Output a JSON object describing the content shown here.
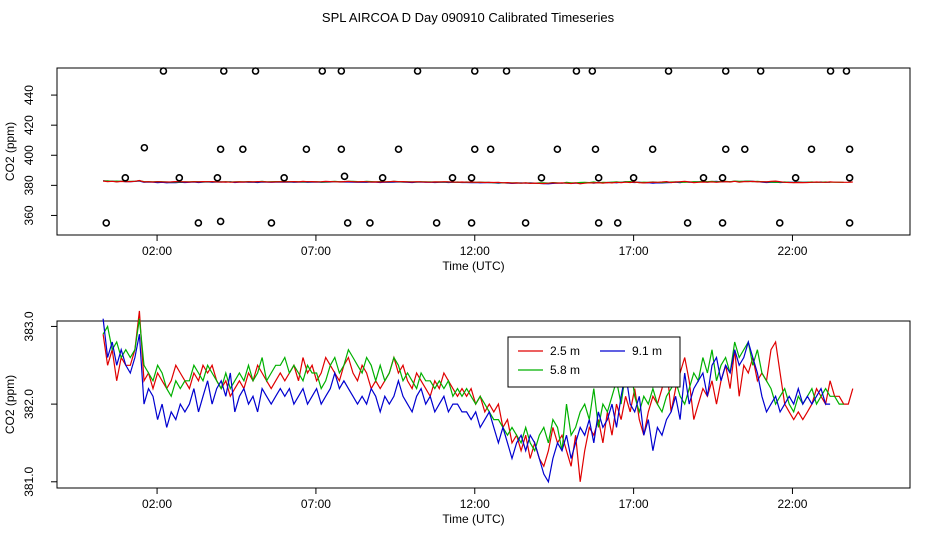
{
  "title": "SPL AIRCOA D  Day 090910  Calibrated Timeseries",
  "chart_data": [
    {
      "type": "scatter",
      "xlabel": "Time (UTC)",
      "ylabel": "CO2 (ppm)",
      "xlim": [
        -1.15,
        25.7
      ],
      "ylim": [
        347,
        458
      ],
      "xticks": [
        2,
        7,
        12,
        17,
        22
      ],
      "xtick_labels": [
        "02:00",
        "07:00",
        "12:00",
        "17:00",
        "22:00"
      ],
      "yticks": [
        360,
        380,
        400,
        420,
        440
      ],
      "ytick_labels": [
        "360",
        "380",
        "400",
        "420",
        "440"
      ],
      "reference_points": {
        "x": [
          0.4,
          1.0,
          1.6,
          2.2,
          2.7,
          3.3,
          3.9,
          4.0,
          4.0,
          4.1,
          4.7,
          5.1,
          5.6,
          6.0,
          6.7,
          7.2,
          7.8,
          7.8,
          7.9,
          8.0,
          8.7,
          9.1,
          9.6,
          10.2,
          10.8,
          11.3,
          11.9,
          11.9,
          12.0,
          12.0,
          12.5,
          13.0,
          13.6,
          14.1,
          14.6,
          15.2,
          15.7,
          15.8,
          15.9,
          15.9,
          16.5,
          17.0,
          17.6,
          18.1,
          18.7,
          19.2,
          19.8,
          19.8,
          19.9,
          19.9,
          20.5,
          21.0,
          21.6,
          22.1,
          22.6,
          23.2,
          23.7,
          23.8,
          23.8,
          23.8
        ],
        "y": [
          355,
          385,
          405,
          456,
          385,
          355,
          385,
          356,
          404,
          456,
          404,
          456,
          355,
          385,
          404,
          456,
          456,
          404,
          386,
          355,
          355,
          385,
          404,
          456,
          355,
          385,
          355,
          385,
          404,
          456,
          404,
          456,
          355,
          385,
          404,
          456,
          456,
          404,
          385,
          355,
          355,
          385,
          404,
          456,
          355,
          385,
          355,
          385,
          404,
          456,
          404,
          456,
          355,
          385,
          404,
          456,
          456,
          404,
          385,
          355
        ]
      },
      "series": [
        {
          "name": "2.5 m",
          "color": "#e00000",
          "y": [
            382.9,
            382.5,
            382.7,
            382.3,
            382.6,
            382.5,
            382.5,
            382.7,
            383.2,
            382.3,
            382.4,
            382.2,
            382.4,
            382.3,
            382.2,
            382.3,
            382.5,
            382.4,
            382.3,
            382.2,
            382.4,
            382.3,
            382.5,
            382.4,
            382.5,
            382.3,
            382.2,
            382.3,
            382.1,
            382.2,
            382.3,
            382.2,
            382.4,
            382.3,
            382.5,
            382.4,
            382.3,
            382.2,
            382.3,
            382.4,
            382.3,
            382.4,
            382.5,
            382.3,
            382.6,
            382.4,
            382.5,
            382.3,
            382.4,
            382.6,
            382.5,
            382.4,
            382.3,
            382.5,
            382.6,
            382.4,
            382.3,
            382.5,
            382.4,
            382.2,
            382.3,
            382.2,
            382.3,
            382.4,
            382.6,
            382.4,
            382.5,
            382.3,
            382.2,
            382.4,
            382.3,
            382.2,
            382.1,
            382.3,
            382.2,
            382.4,
            382.3,
            382.2,
            382.1,
            382.2,
            382.1,
            382.2,
            382.0,
            382.1,
            381.9,
            382.0,
            381.9,
            382.0,
            381.7,
            381.8,
            381.5,
            381.6,
            381.4,
            381.6,
            381.3,
            381.5,
            381.3,
            381.2,
            381.4,
            381.7,
            381.5,
            381.6,
            381.4,
            381.2,
            381.6,
            381.0,
            381.4,
            381.7,
            381.6,
            381.8,
            381.5,
            381.9,
            381.6,
            382.0,
            381.8,
            382.1,
            381.9,
            382.2,
            381.8,
            381.6,
            381.9,
            382.1,
            382.0,
            382.2,
            382.5,
            381.9,
            382.2,
            382.4,
            382.6,
            382.3,
            381.8,
            382.0,
            382.2,
            382.1,
            382.3,
            382.0,
            382.3,
            382.5,
            382.2,
            382.7,
            382.1,
            382.5,
            382.4,
            382.6,
            382.3,
            382.4,
            382.3,
            382.7,
            382.8,
            382.4,
            382.0,
            381.9,
            381.8,
            381.9,
            381.8,
            381.9,
            382.0,
            382.2,
            382.1,
            382.0,
            382.3,
            382.1,
            382.1,
            382.0,
            382.0,
            382.2
          ]
        },
        {
          "name": "5.8 m",
          "color": "#00b000",
          "y": [
            382.9,
            383.0,
            382.7,
            382.8,
            382.6,
            382.7,
            382.6,
            382.7,
            383.1,
            382.5,
            382.4,
            382.3,
            382.5,
            382.4,
            382.2,
            382.1,
            382.3,
            382.2,
            382.3,
            382.3,
            382.5,
            382.4,
            382.3,
            382.5,
            382.4,
            382.3,
            382.2,
            382.4,
            382.2,
            382.3,
            382.4,
            382.3,
            382.5,
            382.3,
            382.4,
            382.6,
            382.3,
            382.4,
            382.5,
            382.5,
            382.6,
            382.4,
            382.5,
            382.4,
            382.3,
            382.5,
            382.4,
            382.4,
            382.2,
            382.3,
            382.5,
            382.6,
            382.4,
            382.5,
            382.7,
            382.6,
            382.5,
            382.4,
            382.6,
            382.5,
            382.3,
            382.5,
            382.3,
            382.4,
            382.6,
            382.5,
            382.3,
            382.4,
            382.3,
            382.2,
            382.4,
            382.3,
            382.3,
            382.2,
            382.3,
            382.2,
            382.3,
            382.1,
            382.2,
            382.1,
            382.2,
            382.1,
            382.0,
            382.1,
            382.0,
            381.9,
            381.8,
            381.8,
            381.7,
            381.6,
            381.7,
            381.6,
            381.5,
            381.7,
            381.5,
            381.4,
            381.6,
            381.7,
            381.5,
            381.8,
            381.7,
            381.4,
            382.0,
            381.6,
            381.7,
            381.9,
            382.0,
            381.8,
            382.2,
            381.7,
            382.0,
            381.9,
            382.1,
            382.3,
            382.0,
            382.4,
            382.5,
            382.1,
            381.9,
            382.1,
            382.0,
            382.2,
            382.0,
            381.9,
            382.1,
            382.2,
            382.3,
            382.1,
            382.0,
            382.2,
            382.4,
            382.3,
            382.6,
            382.4,
            382.7,
            382.3,
            382.5,
            382.6,
            382.4,
            382.8,
            382.6,
            382.7,
            382.8,
            382.5,
            382.7,
            382.4,
            382.3,
            382.2,
            382.0,
            382.1,
            382.2,
            382.0,
            381.9,
            382.1,
            382.0,
            382.1,
            382.2,
            382.0,
            382.1,
            382.2,
            382.1,
            382.1,
            382.0,
            382.0
          ]
        },
        {
          "name": "9.1 m",
          "color": "#0000d0",
          "y": [
            383.1,
            382.6,
            382.8,
            382.5,
            382.7,
            382.5,
            382.4,
            382.6,
            382.9,
            382.0,
            382.2,
            382.1,
            381.8,
            382.0,
            381.7,
            381.9,
            381.8,
            382.0,
            381.9,
            382.0,
            382.2,
            381.9,
            382.1,
            382.3,
            382.0,
            382.2,
            382.3,
            382.1,
            382.4,
            381.9,
            382.1,
            382.2,
            382.0,
            382.1,
            381.9,
            382.2,
            382.1,
            382.0,
            382.1,
            382.2,
            382.1,
            382.2,
            382.0,
            382.1,
            382.2,
            382.0,
            382.1,
            382.2,
            382.0,
            382.1,
            382.2,
            382.4,
            382.2,
            382.3,
            382.2,
            382.1,
            382.0,
            382.1,
            382.0,
            382.2,
            382.1,
            381.9,
            382.1,
            382.0,
            382.1,
            382.3,
            382.1,
            382.0,
            381.9,
            382.1,
            382.2,
            382.0,
            382.1,
            381.9,
            382.0,
            382.1,
            381.9,
            382.0,
            382.0,
            381.9,
            381.9,
            381.8,
            381.9,
            381.7,
            381.8,
            381.9,
            381.7,
            381.5,
            381.7,
            381.5,
            381.3,
            381.5,
            381.6,
            381.4,
            381.6,
            381.5,
            381.3,
            381.1,
            381.0,
            381.3,
            381.5,
            381.4,
            381.6,
            381.3,
            381.5,
            381.7,
            381.6,
            381.8,
            381.5,
            381.9,
            381.7,
            381.8,
            382.0,
            381.7,
            382.1,
            382.4,
            382.0,
            381.9,
            382.1,
            381.6,
            381.8,
            381.4,
            381.7,
            381.6,
            381.8,
            381.9,
            382.1,
            381.8,
            382.4,
            382.0,
            382.2,
            382.3,
            382.4,
            382.1,
            382.5,
            382.6,
            382.3,
            382.5,
            382.4,
            382.7,
            382.5,
            382.6,
            382.8,
            382.6,
            382.4,
            382.1,
            381.9,
            382.0,
            382.1,
            381.9,
            382.0,
            382.1,
            382.0,
            382.2,
            382.0,
            382.1,
            382.0,
            382.1,
            382.2,
            382.0,
            382.0
          ]
        }
      ]
    },
    {
      "type": "line",
      "xlabel": "Time (UTC)",
      "ylabel": "CO2 (ppm)",
      "xlim": [
        -1.15,
        25.7
      ],
      "ylim": [
        380.92,
        383.07
      ],
      "xticks": [
        2,
        7,
        12,
        17,
        22
      ],
      "xtick_labels": [
        "02:00",
        "07:00",
        "12:00",
        "17:00",
        "22:00"
      ],
      "yticks": [
        381.0,
        382.0,
        383.0
      ],
      "ytick_labels": [
        "381.0",
        "382.0",
        "383.0"
      ],
      "legend": {
        "position": "top-center",
        "entries": [
          "2.5 m",
          "5.8 m",
          "9.1 m"
        ]
      }
    }
  ]
}
